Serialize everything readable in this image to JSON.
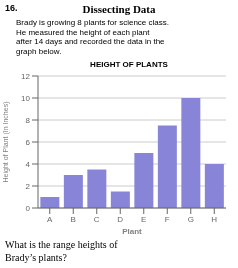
{
  "chart_data": {
    "type": "bar",
    "title": "HEIGHT OF PLANTS",
    "xlabel": "Plant",
    "ylabel": "Height of Plant (In Inches)",
    "categories": [
      "A",
      "B",
      "C",
      "D",
      "E",
      "F",
      "G",
      "H"
    ],
    "values": [
      1,
      3,
      3.5,
      1.5,
      5,
      7.5,
      10,
      4
    ],
    "color": "#8884d8",
    "ylim": [
      0,
      12
    ],
    "yticks": [
      0,
      2,
      4,
      6,
      8,
      10,
      12
    ],
    "grid": true,
    "annotations": [
      "16.",
      "Dissecting Data",
      "Brady is growing 8 plants for science class.",
      "He measured the height of each plant",
      "after 14 days and recorded the data in the",
      "graph below.",
      "What is the range heights of\nBrady’s plants?"
    ]
  }
}
